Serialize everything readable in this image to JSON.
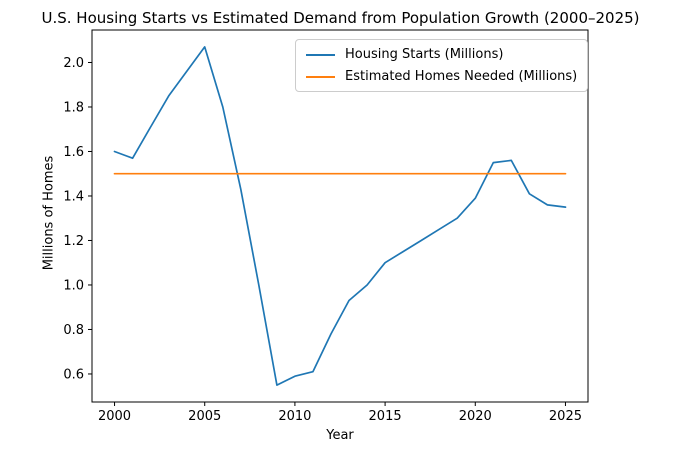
{
  "chart_data": {
    "type": "line",
    "title": "U.S. Housing Starts vs Estimated Demand from Population Growth (2000–2025)",
    "xlabel": "Year",
    "ylabel": "Millions of Homes",
    "x": [
      2000,
      2001,
      2002,
      2003,
      2004,
      2005,
      2006,
      2007,
      2008,
      2009,
      2010,
      2011,
      2012,
      2013,
      2014,
      2015,
      2016,
      2017,
      2018,
      2019,
      2020,
      2021,
      2022,
      2023,
      2024,
      2025
    ],
    "series": [
      {
        "name": "Housing Starts (Millions)",
        "color": "#1f77b4",
        "values": [
          1.6,
          1.57,
          1.71,
          1.85,
          1.96,
          2.07,
          1.8,
          1.43,
          1.0,
          0.55,
          0.59,
          0.61,
          0.78,
          0.93,
          1.0,
          1.1,
          1.15,
          1.2,
          1.25,
          1.3,
          1.39,
          1.55,
          1.56,
          1.41,
          1.36,
          1.35
        ]
      },
      {
        "name": "Estimated Homes Needed (Millions)",
        "color": "#ff7f0e",
        "values": [
          1.5,
          1.5,
          1.5,
          1.5,
          1.5,
          1.5,
          1.5,
          1.5,
          1.5,
          1.5,
          1.5,
          1.5,
          1.5,
          1.5,
          1.5,
          1.5,
          1.5,
          1.5,
          1.5,
          1.5,
          1.5,
          1.5,
          1.5,
          1.5,
          1.5,
          1.5
        ]
      }
    ],
    "xlim": [
      1998.75,
      2026.25
    ],
    "ylim": [
      0.474,
      2.146
    ],
    "x_ticks": [
      "2000",
      "2005",
      "2010",
      "2015",
      "2020",
      "2025"
    ],
    "y_ticks": [
      "0.6",
      "0.8",
      "1.0",
      "1.2",
      "1.4",
      "1.6",
      "1.8",
      "2.0"
    ],
    "grid": false,
    "legend_position": "upper center",
    "axis_color": "#000000",
    "legend_border_color": "#cccccc",
    "background": "#ffffff"
  }
}
